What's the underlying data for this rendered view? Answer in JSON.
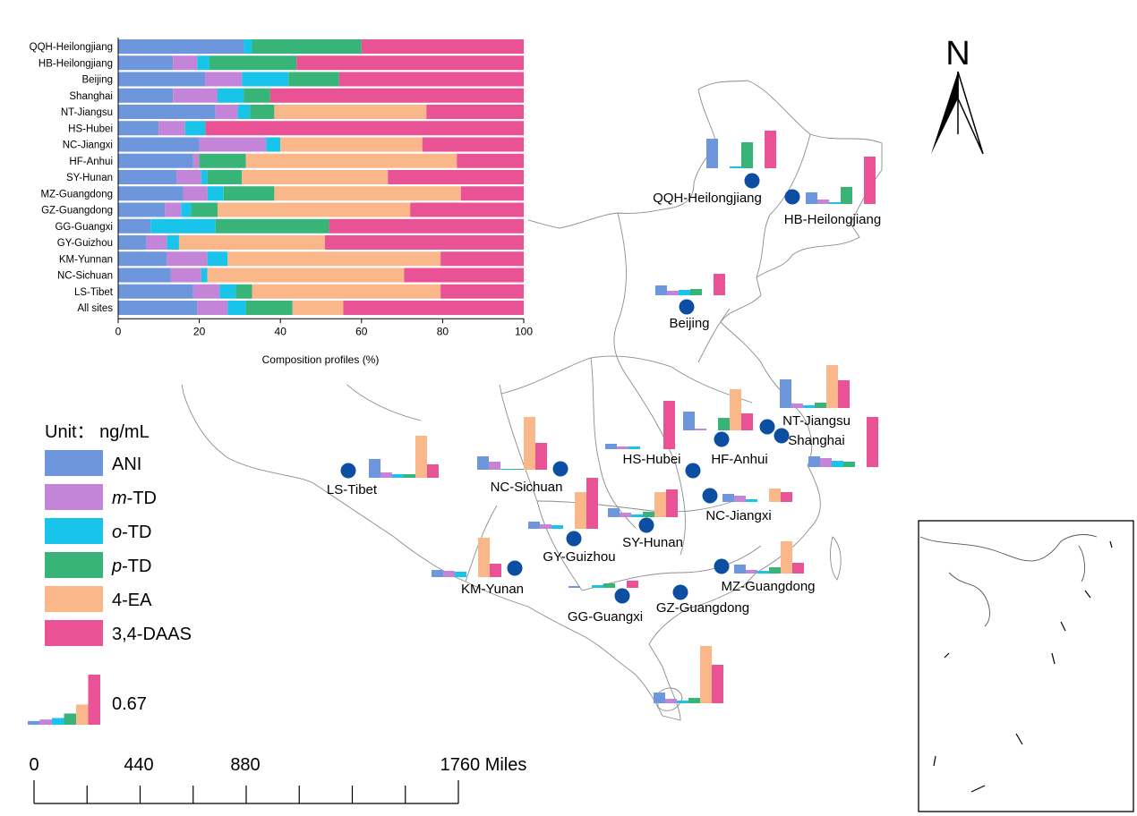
{
  "colors": {
    "ANI": "#6e96dc",
    "m-TD": "#c484d8",
    "o-TD": "#18c4ea",
    "p-TD": "#38b478",
    "4-EA": "#f9b78a",
    "3,4-DAAS": "#ea5296",
    "site_marker": "#0b4ea2"
  },
  "legend": {
    "unit_label": "Unit： ng/mL",
    "items": [
      {
        "key": "ANI",
        "pre": "",
        "ital": "",
        "post": "ANI"
      },
      {
        "key": "m-TD",
        "pre": "",
        "ital": "m",
        "post": "-TD"
      },
      {
        "key": "o-TD",
        "pre": "",
        "ital": "o",
        "post": "-TD"
      },
      {
        "key": "p-TD",
        "pre": "",
        "ital": "p",
        "post": "-TD"
      },
      {
        "key": "4-EA",
        "pre": "",
        "ital": "",
        "post": "4-EA"
      },
      {
        "key": "3,4-DAAS",
        "pre": "",
        "ital": "",
        "post": "3,4-DAAS"
      }
    ],
    "scale_value": "0.67",
    "scale_bar_values": [
      0.05,
      0.07,
      0.09,
      0.15,
      0.27,
      0.67
    ]
  },
  "scale_bar": {
    "labels": [
      "0",
      "440",
      "880",
      "1760 Miles"
    ]
  },
  "north_arrow": {
    "label": "N"
  },
  "map_sites": [
    {
      "name": "QQH-Heilongjiang",
      "values": [
        0.33,
        0.0,
        0.02,
        0.29,
        0.0,
        0.42
      ]
    },
    {
      "name": "HB-Heilongjiang",
      "values": [
        0.13,
        0.05,
        0.02,
        0.19,
        0.0,
        0.53
      ]
    },
    {
      "name": "Beijing",
      "values": [
        0.11,
        0.05,
        0.06,
        0.07,
        0.0,
        0.24
      ]
    },
    {
      "name": "NT-Jiangsu",
      "values": [
        0.32,
        0.05,
        0.03,
        0.06,
        0.48,
        0.31
      ]
    },
    {
      "name": "Shanghai",
      "values": [
        0.12,
        0.1,
        0.07,
        0.06,
        0.0,
        0.56
      ]
    },
    {
      "name": "HS-Hubei",
      "values": [
        0.06,
        0.03,
        0.03,
        0.0,
        0.0,
        0.54
      ]
    },
    {
      "name": "HF-Anhui",
      "values": [
        0.21,
        0.02,
        0.0,
        0.14,
        0.46,
        0.19
      ]
    },
    {
      "name": "NC-Jiangxi",
      "values": [
        0.09,
        0.07,
        0.03,
        0.0,
        0.15,
        0.11
      ]
    },
    {
      "name": "LS-Tibet",
      "values": [
        0.21,
        0.06,
        0.04,
        0.04,
        0.47,
        0.15
      ]
    },
    {
      "name": "NC-Sichuan",
      "values": [
        0.15,
        0.09,
        0.01,
        0.01,
        0.59,
        0.3
      ]
    },
    {
      "name": "GY-Guizhou",
      "values": [
        0.08,
        0.05,
        0.04,
        0.0,
        0.41,
        0.57
      ]
    },
    {
      "name": "SY-Hunan",
      "values": [
        0.1,
        0.05,
        0.03,
        0.06,
        0.28,
        0.31
      ]
    },
    {
      "name": "KM-Yunan",
      "values": [
        0.08,
        0.07,
        0.06,
        0.0,
        0.44,
        0.15
      ]
    },
    {
      "name": "MZ-Guangdong",
      "values": [
        0.1,
        0.04,
        0.03,
        0.07,
        0.36,
        0.12
      ]
    },
    {
      "name": "GG-Guangxi",
      "values": [
        0.02,
        0.0,
        0.03,
        0.05,
        0.0,
        0.08
      ]
    },
    {
      "name": "GZ-Guangdong",
      "values": [
        0.12,
        0.05,
        0.03,
        0.06,
        0.64,
        0.43
      ]
    }
  ],
  "chart_data": {
    "type": "bar",
    "orientation": "horizontal",
    "stacked": true,
    "xlabel": "Composition profiles (%)",
    "ylabel": "",
    "xlim": [
      0,
      100
    ],
    "x_ticks": [
      "0",
      "20",
      "40",
      "60",
      "80",
      "100"
    ],
    "grid": false,
    "categories": [
      "QQH-Heilongjiang",
      "HB-Heilongjiang",
      "Beijing",
      "Shanghai",
      "NT-Jiangsu",
      "HS-Hubei",
      "NC-Jiangxi",
      "HF-Anhui",
      "SY-Hunan",
      "MZ-Guangdong",
      "GZ-Guangdong",
      "GG-Guangxi",
      "GY-Guizhou",
      "KM-Yunnan",
      "NC-Sichuan",
      "LS-Tibet",
      "All sites"
    ],
    "series": [
      {
        "name": "ANI",
        "values": [
          31,
          13.5,
          21.5,
          13.5,
          24,
          10,
          20,
          18.5,
          14.5,
          16,
          11.5,
          8,
          7,
          12,
          13,
          18.5,
          19.5
        ]
      },
      {
        "name": "m-TD",
        "values": [
          0,
          6,
          9,
          11,
          5.5,
          6.5,
          16.5,
          1.5,
          6,
          6,
          4,
          0,
          5,
          10,
          7.5,
          6.5,
          7.5
        ]
      },
      {
        "name": "o-TD",
        "values": [
          2,
          3,
          11.5,
          6.5,
          3,
          5,
          3.5,
          0,
          1.5,
          4,
          2.5,
          16,
          3,
          5,
          1.5,
          4,
          4.5
        ]
      },
      {
        "name": "p-TD",
        "values": [
          27,
          21.5,
          12.5,
          6.5,
          6,
          0,
          0,
          11.5,
          8.5,
          12.5,
          6.5,
          28,
          0,
          0,
          0,
          4,
          11.5
        ]
      },
      {
        "name": "4-EA",
        "values": [
          0,
          0,
          0,
          0,
          37.5,
          0,
          35,
          52,
          36,
          46,
          47.5,
          0,
          36,
          52.5,
          48.5,
          46.5,
          12.5
        ]
      },
      {
        "name": "3,4-DAAS",
        "values": [
          40,
          56,
          45.5,
          62.5,
          24,
          78.5,
          25,
          16.5,
          33.5,
          15.5,
          28,
          48,
          49,
          20.5,
          29.5,
          20.5,
          44.5
        ]
      }
    ]
  }
}
